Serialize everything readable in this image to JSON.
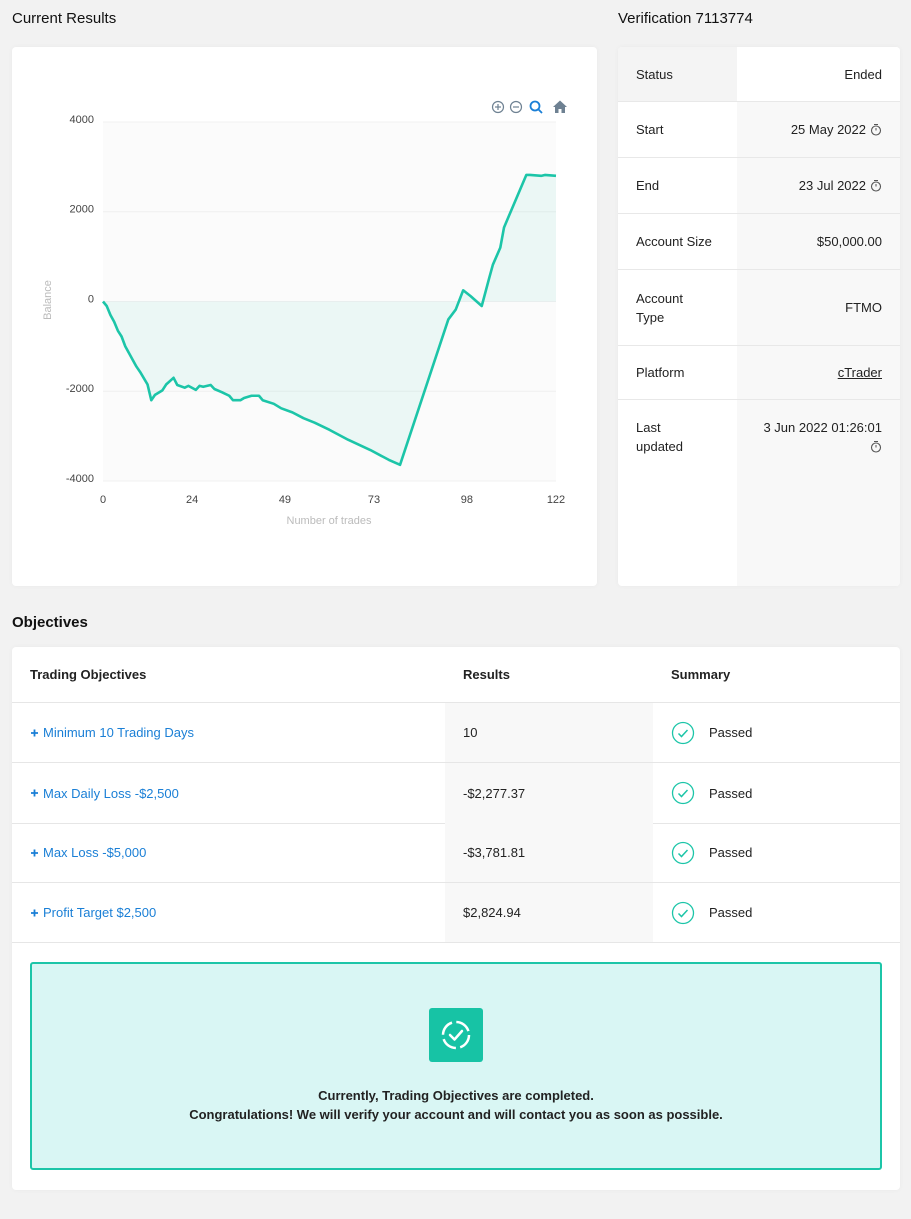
{
  "header": {
    "results_title": "Current Results",
    "verification_title": "Verification 7113774"
  },
  "chart_data": {
    "type": "line",
    "y_label": "Balance",
    "x_label": "Number of trades",
    "x": [
      0,
      1,
      2,
      3,
      4,
      5,
      6,
      8,
      9,
      10,
      12,
      13,
      14,
      16,
      17,
      19,
      20,
      22,
      23,
      25,
      26,
      27,
      29,
      30,
      32,
      34,
      35,
      37,
      38,
      40,
      42,
      43,
      46,
      48,
      51,
      54,
      57,
      61,
      66,
      72,
      77,
      80,
      93,
      95,
      97,
      99,
      102,
      104,
      105,
      107,
      108,
      114,
      115,
      118,
      119,
      122
    ],
    "values": [
      0,
      -100,
      -300,
      -450,
      -650,
      -780,
      -1000,
      -1300,
      -1450,
      -1570,
      -1850,
      -2200,
      -2080,
      -1980,
      -1850,
      -1700,
      -1860,
      -1920,
      -1880,
      -1970,
      -1880,
      -1900,
      -1860,
      -1950,
      -2020,
      -2100,
      -2200,
      -2200,
      -2150,
      -2100,
      -2100,
      -2200,
      -2280,
      -2380,
      -2470,
      -2600,
      -2700,
      -2860,
      -3080,
      -3310,
      -3530,
      -3640,
      -400,
      -180,
      250,
      120,
      -100,
      520,
      820,
      1200,
      1650,
      2820,
      2820,
      2800,
      2820,
      2800
    ],
    "color": "#1cc5a8",
    "area": true,
    "xlim": [
      0,
      122
    ],
    "xticks": [
      0,
      24,
      49,
      73,
      98,
      122
    ],
    "ylim": [
      -4000,
      4000
    ],
    "yticks": [
      -4000,
      -2000,
      0,
      2000,
      4000
    ],
    "grid": true
  },
  "details": {
    "rows": [
      {
        "label": "Status",
        "value": "Ended"
      },
      {
        "label": "Start",
        "value": "25 May 2022"
      },
      {
        "label": "End",
        "value": "23 Jul 2022"
      },
      {
        "label": "Account Size",
        "value": "$50,000.00"
      },
      {
        "label": "Account Type",
        "value": "FTMO"
      },
      {
        "label": "Platform",
        "value": "cTrader"
      },
      {
        "label": "Last updated",
        "value": "3 Jun 2022 01:26:01"
      }
    ]
  },
  "objectives": {
    "title": "Objectives",
    "columns": [
      "Trading Objectives",
      "Results",
      "Summary"
    ],
    "rows": [
      {
        "objective": "Minimum 10 Trading Days",
        "result": "10",
        "summary": "Passed"
      },
      {
        "objective": "Max Daily Loss -$2,500",
        "result": "-$2,277.37",
        "summary": "Passed"
      },
      {
        "objective": "Max Loss -$5,000",
        "result": "-$3,781.81",
        "summary": "Passed"
      },
      {
        "objective": "Profit Target $2,500",
        "result": "$2,824.94",
        "summary": "Passed"
      }
    ]
  },
  "notice": {
    "line1": "Currently, Trading Objectives are completed.",
    "line2": "Congratulations! We will verify your account and will contact you as soon as possible."
  }
}
